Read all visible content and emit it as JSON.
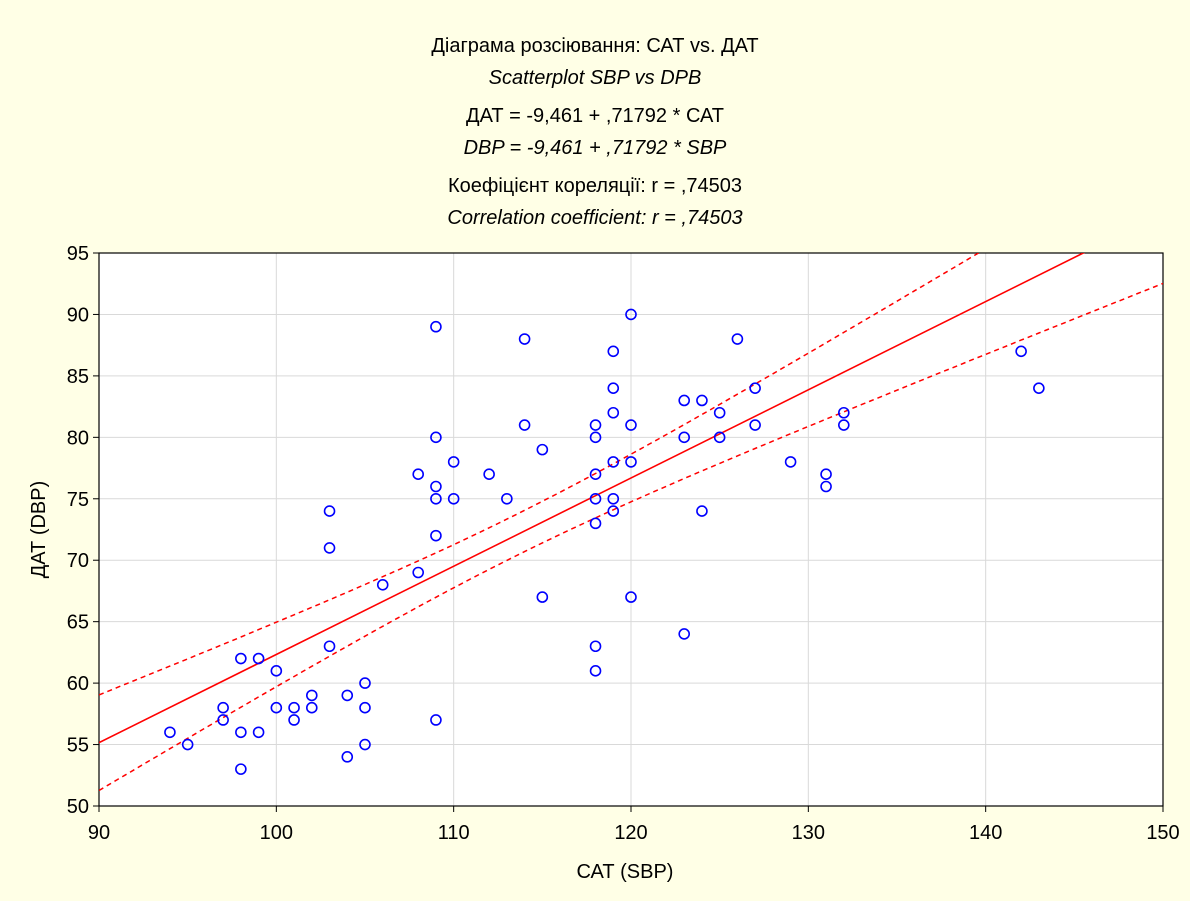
{
  "chart_data": {
    "type": "scatter",
    "title_lines": [
      "Діаграма розсіювання: САТ vs. ДАТ",
      "Scatterplot SBP vs DPB",
      "ДАТ = -9,461 + ,71792 * САТ",
      "DBP = -9,461 + ,71792 * SBP",
      "Коефіцієнт кореляції: r = ,74503",
      "Correlation coefficient: r = ,74503"
    ],
    "xlabel": "САТ (SBP)",
    "ylabel": "ДАТ (DBP)",
    "xlim": [
      90,
      150
    ],
    "ylim": [
      50,
      95
    ],
    "x_ticks": [
      90,
      100,
      110,
      120,
      130,
      140,
      150
    ],
    "y_ticks": [
      50,
      55,
      60,
      65,
      70,
      75,
      80,
      85,
      90,
      95
    ],
    "grid": true,
    "regression": {
      "intercept": -9.461,
      "slope": 0.71792,
      "color": "#ff0000"
    },
    "confidence_band_dashed": true,
    "point_color": "#0000ff",
    "points": [
      [
        94,
        56
      ],
      [
        95,
        55
      ],
      [
        97,
        58
      ],
      [
        97,
        57
      ],
      [
        98,
        62
      ],
      [
        98,
        56
      ],
      [
        98,
        53
      ],
      [
        99,
        62
      ],
      [
        99,
        56
      ],
      [
        100,
        61
      ],
      [
        100,
        58
      ],
      [
        101,
        58
      ],
      [
        101,
        57
      ],
      [
        102,
        59
      ],
      [
        102,
        58
      ],
      [
        103,
        74
      ],
      [
        103,
        71
      ],
      [
        103,
        63
      ],
      [
        104,
        59
      ],
      [
        104,
        54
      ],
      [
        105,
        60
      ],
      [
        105,
        58
      ],
      [
        105,
        55
      ],
      [
        106,
        68
      ],
      [
        108,
        77
      ],
      [
        108,
        69
      ],
      [
        109,
        89
      ],
      [
        109,
        80
      ],
      [
        109,
        76
      ],
      [
        109,
        75
      ],
      [
        109,
        72
      ],
      [
        109,
        57
      ],
      [
        110,
        78
      ],
      [
        110,
        75
      ],
      [
        112,
        77
      ],
      [
        113,
        75
      ],
      [
        114,
        88
      ],
      [
        114,
        81
      ],
      [
        115,
        79
      ],
      [
        115,
        67
      ],
      [
        118,
        81
      ],
      [
        118,
        80
      ],
      [
        118,
        77
      ],
      [
        118,
        75
      ],
      [
        118,
        73
      ],
      [
        118,
        63
      ],
      [
        118,
        61
      ],
      [
        119,
        87
      ],
      [
        119,
        84
      ],
      [
        119,
        82
      ],
      [
        119,
        78
      ],
      [
        119,
        75
      ],
      [
        119,
        74
      ],
      [
        120,
        90
      ],
      [
        120,
        81
      ],
      [
        120,
        78
      ],
      [
        120,
        67
      ],
      [
        123,
        83
      ],
      [
        123,
        80
      ],
      [
        123,
        64
      ],
      [
        124,
        83
      ],
      [
        124,
        74
      ],
      [
        125,
        82
      ],
      [
        125,
        80
      ],
      [
        126,
        88
      ],
      [
        127,
        84
      ],
      [
        127,
        81
      ],
      [
        129,
        78
      ],
      [
        131,
        77
      ],
      [
        131,
        76
      ],
      [
        132,
        82
      ],
      [
        132,
        81
      ],
      [
        142,
        87
      ],
      [
        143,
        84
      ]
    ]
  }
}
